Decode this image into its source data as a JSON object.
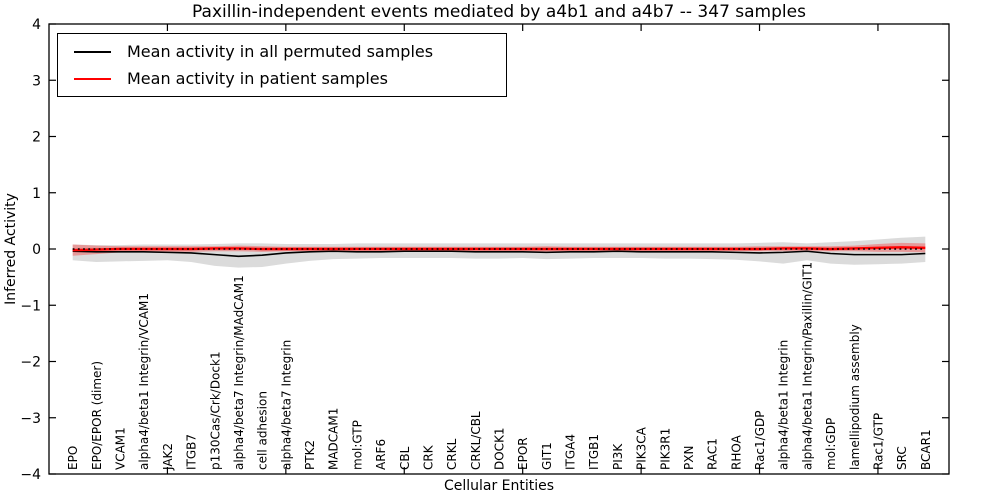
{
  "chart_data": {
    "type": "line",
    "title": "Paxillin-independent events mediated by a4b1 and a4b7 -- 347 samples",
    "xlabel": "Cellular Entities",
    "ylabel": "Inferred Activity",
    "ylim": [
      -4,
      4
    ],
    "xlim": [
      0,
      38
    ],
    "grid": false,
    "ytick_values": [
      4,
      3,
      2,
      1,
      0,
      -1,
      -2,
      -3,
      -4
    ],
    "ytick_labels": [
      "4",
      "3",
      "2",
      "1",
      "0",
      "−1",
      "−2",
      "−3",
      "−4"
    ],
    "xtick_major_values": [
      5,
      10,
      15,
      20,
      25,
      30,
      35
    ],
    "categories": [
      "EPO",
      "EPO/EPOR (dimer)",
      "VCAM1",
      "alpha4/beta1 Integrin/VCAM1",
      "JAK2",
      "ITGB7",
      "p130Cas/Crk/Dock1",
      "alpha4/beta7 Integrin/MAdCAM1",
      "cell adhesion",
      "alpha4/beta7 Integrin",
      "PTK2",
      "MADCAM1",
      "mol:GTP",
      "ARF6",
      "CBL",
      "CRK",
      "CRKL",
      "CRKL/CBL",
      "DOCK1",
      "EPOR",
      "GIT1",
      "ITGA4",
      "ITGB1",
      "PI3K",
      "PIK3CA",
      "PIK3R1",
      "PXN",
      "RAC1",
      "RHOA",
      "Rac1/GDP",
      "alpha4/beta1 Integrin",
      "alpha4/beta1 Integrin/Paxillin/GIT1",
      "mol:GDP",
      "lamellipodium assembly",
      "Rac1/GTP",
      "SRC",
      "BCAR1"
    ],
    "series": [
      {
        "name": "Mean activity in all permuted samples",
        "color": "#000000",
        "line_width": 1.6,
        "values": [
          -0.04,
          -0.05,
          -0.05,
          -0.05,
          -0.06,
          -0.07,
          -0.1,
          -0.13,
          -0.11,
          -0.07,
          -0.05,
          -0.04,
          -0.05,
          -0.05,
          -0.04,
          -0.04,
          -0.04,
          -0.05,
          -0.05,
          -0.05,
          -0.06,
          -0.05,
          -0.05,
          -0.04,
          -0.05,
          -0.05,
          -0.05,
          -0.05,
          -0.06,
          -0.07,
          -0.06,
          -0.04,
          -0.08,
          -0.1,
          -0.1,
          -0.1,
          -0.08
        ]
      },
      {
        "name": "Mean activity in patient samples",
        "color": "#ff0000",
        "line_width": 2.4,
        "values": [
          -0.02,
          -0.01,
          0,
          0,
          0,
          0,
          0.01,
          0.01,
          0,
          0,
          0,
          0,
          0,
          0,
          0,
          0,
          0,
          0,
          0,
          0,
          0,
          0,
          0,
          0,
          0,
          0,
          0,
          0,
          0,
          0,
          0.01,
          0.01,
          0,
          0.01,
          0.02,
          0.03,
          0.02
        ]
      }
    ],
    "bands": [
      {
        "name": "permuted-samples-range",
        "color": "#b0b0b0",
        "opacity": 0.45,
        "upper": [
          0.08,
          0.07,
          0.07,
          0.08,
          0.08,
          0.08,
          0.09,
          0.1,
          0.1,
          0.09,
          0.09,
          0.09,
          0.1,
          0.1,
          0.1,
          0.1,
          0.1,
          0.1,
          0.1,
          0.1,
          0.1,
          0.1,
          0.1,
          0.1,
          0.1,
          0.1,
          0.1,
          0.1,
          0.1,
          0.11,
          0.12,
          0.1,
          0.12,
          0.14,
          0.17,
          0.2,
          0.22
        ],
        "lower": [
          -0.2,
          -0.23,
          -0.22,
          -0.21,
          -0.2,
          -0.23,
          -0.3,
          -0.33,
          -0.32,
          -0.26,
          -0.21,
          -0.18,
          -0.17,
          -0.16,
          -0.16,
          -0.16,
          -0.16,
          -0.17,
          -0.17,
          -0.16,
          -0.18,
          -0.17,
          -0.16,
          -0.16,
          -0.16,
          -0.17,
          -0.17,
          -0.18,
          -0.19,
          -0.22,
          -0.26,
          -0.2,
          -0.26,
          -0.28,
          -0.27,
          -0.26,
          -0.23
        ]
      },
      {
        "name": "patient-samples-range",
        "color": "#ff0000",
        "opacity": 0.3,
        "upper": [
          0.08,
          0.06,
          0.05,
          0.05,
          0.05,
          0.05,
          0.05,
          0.06,
          0.05,
          0.04,
          0.04,
          0.04,
          0.04,
          0.04,
          0.04,
          0.04,
          0.04,
          0.04,
          0.04,
          0.04,
          0.05,
          0.04,
          0.04,
          0.04,
          0.04,
          0.04,
          0.04,
          0.04,
          0.04,
          0.05,
          0.05,
          0.05,
          0.05,
          0.06,
          0.09,
          0.11,
          0.1
        ],
        "lower": [
          -0.12,
          -0.09,
          -0.06,
          -0.05,
          -0.05,
          -0.05,
          -0.04,
          -0.04,
          -0.05,
          -0.04,
          -0.04,
          -0.04,
          -0.04,
          -0.04,
          -0.04,
          -0.04,
          -0.04,
          -0.04,
          -0.04,
          -0.04,
          -0.05,
          -0.04,
          -0.04,
          -0.04,
          -0.04,
          -0.04,
          -0.04,
          -0.04,
          -0.04,
          -0.04,
          -0.04,
          -0.04,
          -0.04,
          -0.04,
          -0.05,
          -0.05,
          -0.06
        ]
      }
    ],
    "zero_line": {
      "y": 0,
      "style": "dotted",
      "color": "#000000"
    },
    "legend": {
      "position": "upper left",
      "entries": [
        {
          "label": "Mean activity in all permuted samples",
          "color": "#000000"
        },
        {
          "label": "Mean activity in patient samples",
          "color": "#ff0000"
        }
      ]
    }
  },
  "colors": {
    "background": "#ffffff",
    "frame": "#000000",
    "text": "#000000"
  }
}
